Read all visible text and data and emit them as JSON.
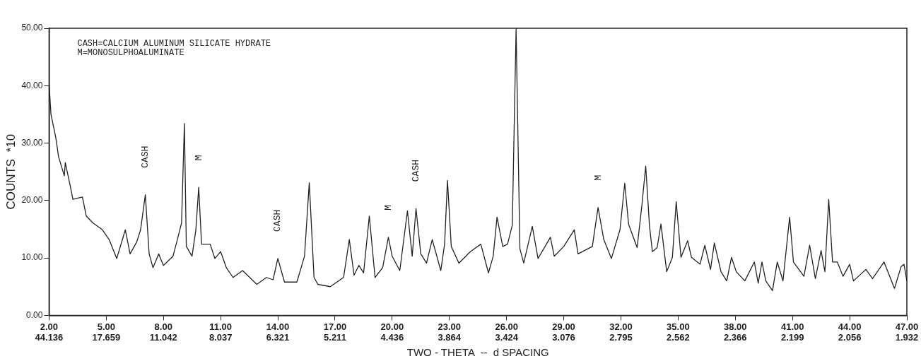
{
  "chart_data": {
    "type": "line",
    "xlabel": "TWO - THETA  --  d SPACING",
    "ylabel": "COUNTS  *10",
    "annotations": [
      "CASH=CALCIUM ALUMINUM SILICATE HYDRATE",
      "M=MONOSULPHOALUMINATE",
      {
        "text": "CASH",
        "x": 7.05,
        "y": 21.0
      },
      {
        "text": "M",
        "x": 9.85,
        "y": 22.3
      },
      {
        "text": "CASH",
        "x": 14.0,
        "y": 9.9
      },
      {
        "text": "M",
        "x": 19.8,
        "y": 13.6
      },
      {
        "text": "CASH",
        "x": 21.25,
        "y": 18.6
      },
      {
        "text": "M",
        "x": 30.8,
        "y": 18.8
      },
      "44.136",
      "17.659",
      "11.042",
      "8.037",
      "6.321",
      "5.211",
      "4.436",
      "3.864",
      "3.424",
      "3.076",
      "2.795",
      "2.562",
      "2.366",
      "2.199",
      "2.056",
      "1.932"
    ],
    "xlim": [
      2,
      47
    ],
    "xticks": [
      {
        "value": 2,
        "label": "2.00"
      },
      {
        "value": 5,
        "label": "5.00"
      },
      {
        "value": 8,
        "label": "8.00"
      },
      {
        "value": 11,
        "label": "11.00"
      },
      {
        "value": 14,
        "label": "14.00"
      },
      {
        "value": 17,
        "label": "17.00"
      },
      {
        "value": 20,
        "label": "20.00"
      },
      {
        "value": 23,
        "label": "23.00"
      },
      {
        "value": 26,
        "label": "26.00"
      },
      {
        "value": 29,
        "label": "29.00"
      },
      {
        "value": 32,
        "label": "32.00"
      },
      {
        "value": 35,
        "label": "35.00"
      },
      {
        "value": 38,
        "label": "38.00"
      },
      {
        "value": 41,
        "label": "41.00"
      },
      {
        "value": 44,
        "label": "44.00"
      },
      {
        "value": 47,
        "label": "47.00"
      }
    ],
    "ylim": [
      0,
      50
    ],
    "yticks": [
      {
        "value": 0,
        "label": "0.00"
      },
      {
        "value": 10,
        "label": "10.00"
      },
      {
        "value": 20,
        "label": "20.00"
      },
      {
        "value": 30,
        "label": "30.00"
      },
      {
        "value": 40,
        "label": "40.00"
      },
      {
        "value": 50,
        "label": "50.00"
      }
    ],
    "grid": false,
    "legend": false,
    "marker": "none",
    "line_style": "solid",
    "series": [
      {
        "color": "#222222",
        "x": [
          2.0,
          2.1,
          2.35,
          2.5,
          2.8,
          2.85,
          3.1,
          3.25,
          3.75,
          3.95,
          4.3,
          4.8,
          5.15,
          5.55,
          6.0,
          6.25,
          6.6,
          6.8,
          7.05,
          7.25,
          7.45,
          7.75,
          8.0,
          8.5,
          8.7,
          8.95,
          9.1,
          9.2,
          9.5,
          9.7,
          9.85,
          10.0,
          10.45,
          10.7,
          11.0,
          11.3,
          11.65,
          12.15,
          12.9,
          13.4,
          13.75,
          14.0,
          14.35,
          15.0,
          15.4,
          15.65,
          15.9,
          16.1,
          16.75,
          17.45,
          17.75,
          18.0,
          18.25,
          18.5,
          18.8,
          19.1,
          19.5,
          19.8,
          20.0,
          20.4,
          20.8,
          21.05,
          21.25,
          21.5,
          21.8,
          22.1,
          22.55,
          22.75,
          22.9,
          23.1,
          23.5,
          24.1,
          24.65,
          25.05,
          25.3,
          25.5,
          25.8,
          26.05,
          26.3,
          26.5,
          26.7,
          26.9,
          27.35,
          27.65,
          28.3,
          28.5,
          29.0,
          29.55,
          29.75,
          30.5,
          30.8,
          31.1,
          31.5,
          31.95,
          32.2,
          32.4,
          32.85,
          33.1,
          33.3,
          33.5,
          33.65,
          33.9,
          34.1,
          34.4,
          34.7,
          34.9,
          35.15,
          35.5,
          35.7,
          36.15,
          36.4,
          36.7,
          36.9,
          37.25,
          37.55,
          37.8,
          38.05,
          38.5,
          39.0,
          39.2,
          39.4,
          39.6,
          39.95,
          40.2,
          40.5,
          40.85,
          41.05,
          41.6,
          41.9,
          42.2,
          42.5,
          42.7,
          42.9,
          43.1,
          43.35,
          43.65,
          44.0,
          44.2,
          44.85,
          45.2,
          45.8,
          46.35,
          46.7,
          46.85,
          47.0
        ],
        "values": [
          40.4,
          35,
          31,
          27.6,
          24.3,
          26.6,
          22.7,
          20.2,
          20.6,
          17.3,
          16.1,
          14.9,
          13.2,
          9.9,
          14.9,
          10.7,
          12.8,
          14.9,
          21.0,
          10.7,
          8.3,
          10.7,
          8.7,
          10.3,
          12.8,
          16.1,
          33.4,
          12.0,
          10.3,
          14.9,
          22.3,
          12.4,
          12.4,
          9.9,
          11.1,
          8.3,
          6.6,
          7.8,
          5.4,
          6.6,
          6.2,
          9.9,
          5.8,
          5.8,
          10.3,
          23.1,
          6.6,
          5.4,
          5.0,
          6.6,
          13.2,
          7.0,
          8.7,
          7.4,
          17.3,
          6.6,
          8.3,
          13.6,
          10.3,
          7.8,
          18.2,
          10.3,
          18.6,
          10.7,
          9.1,
          13.2,
          7.8,
          12.4,
          23.5,
          12.0,
          9.1,
          11.1,
          12.4,
          7.4,
          10.3,
          17.1,
          12.0,
          12.4,
          15.7,
          49.9,
          11.6,
          9.1,
          15.5,
          9.9,
          13.6,
          10.3,
          12.0,
          14.9,
          10.7,
          12.0,
          18.8,
          13.2,
          9.9,
          14.9,
          23.0,
          15.9,
          11.8,
          19.2,
          26.0,
          15.5,
          11.1,
          11.8,
          15.9,
          7.6,
          10.1,
          19.8,
          10.1,
          13.0,
          10.1,
          8.9,
          12.2,
          8.0,
          12.6,
          7.6,
          6.0,
          10.1,
          7.6,
          6.0,
          9.3,
          5.6,
          9.3,
          6.0,
          4.3,
          9.3,
          6.0,
          17.1,
          9.3,
          6.8,
          12.2,
          6.4,
          11.3,
          7.6,
          20.2,
          9.3,
          9.3,
          6.8,
          8.9,
          6.0,
          8.0,
          6.4,
          9.3,
          4.7,
          8.5,
          8.9,
          6.0
        ]
      }
    ]
  }
}
